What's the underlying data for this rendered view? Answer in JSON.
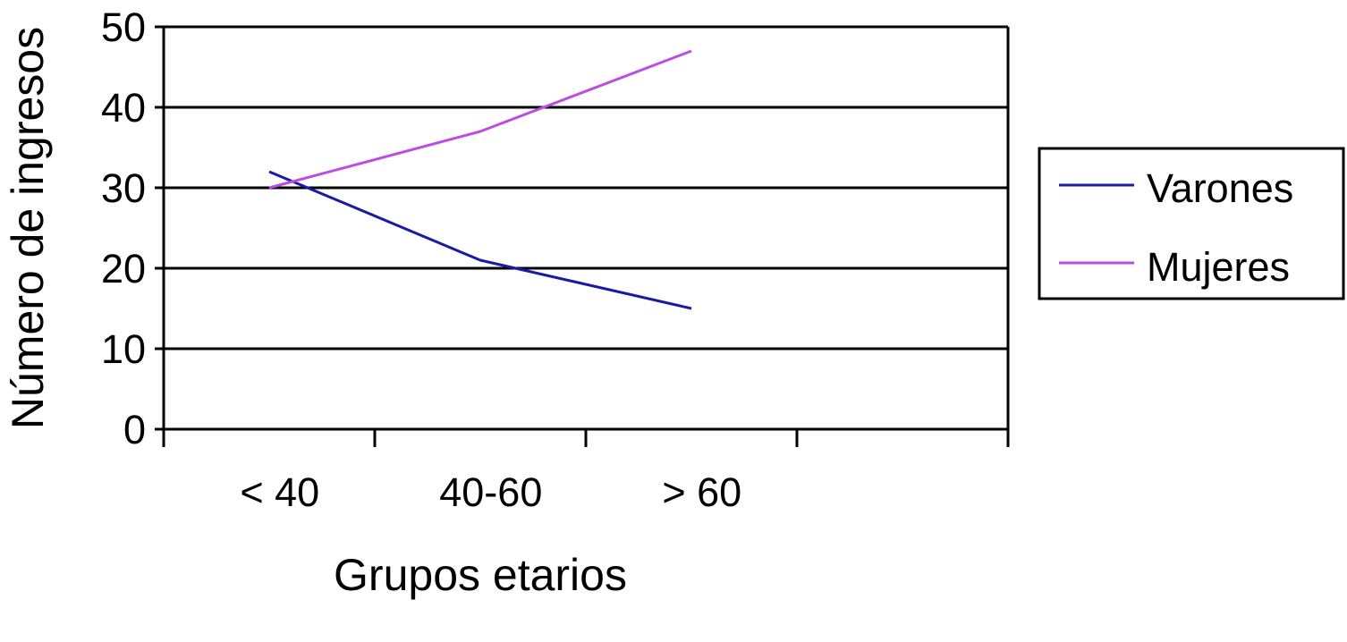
{
  "chart_data": {
    "type": "line",
    "title": "",
    "xlabel": "Grupos etarios",
    "ylabel": "Número de ingresos",
    "categories": [
      "< 40",
      "40-60",
      "> 60"
    ],
    "ylim": [
      0,
      50
    ],
    "yticks": [
      0,
      10,
      20,
      30,
      40,
      50
    ],
    "grid": true,
    "legend_position": "right",
    "series": [
      {
        "name": "Varones",
        "values": [
          32,
          21,
          15
        ],
        "color": "#1a1aa6"
      },
      {
        "name": "Mujeres",
        "values": [
          30,
          37,
          47
        ],
        "color": "#bb4de3"
      }
    ]
  }
}
